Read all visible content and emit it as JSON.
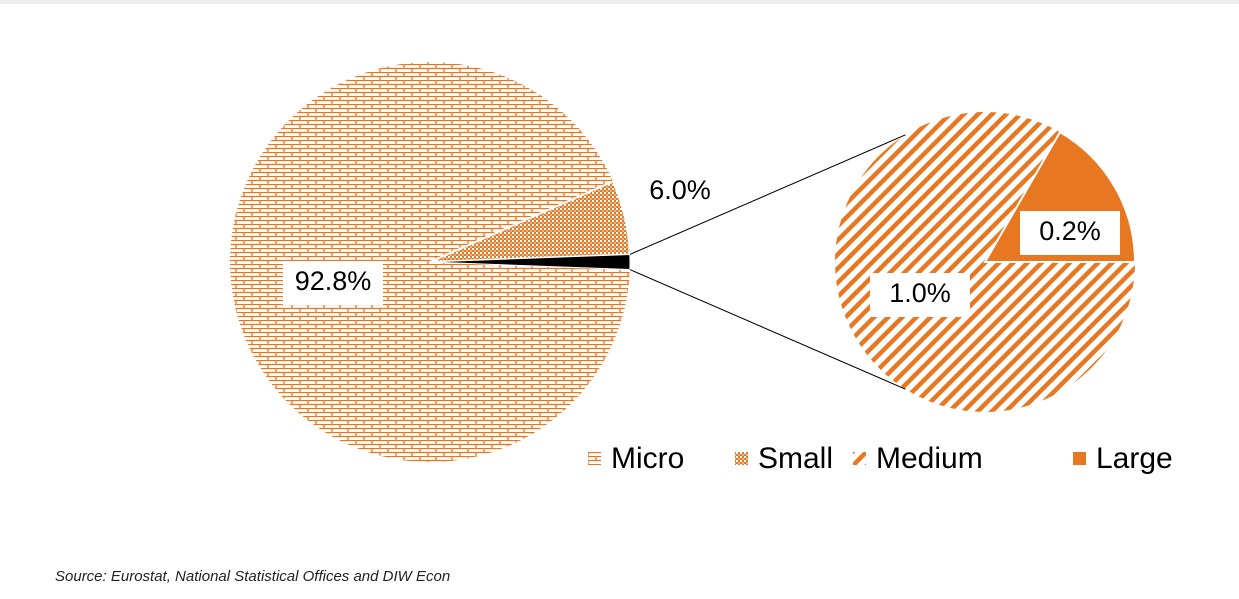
{
  "chart_data": {
    "type": "pie-of-pie",
    "categories": [
      "Micro",
      "Small",
      "Medium",
      "Large"
    ],
    "values": [
      92.8,
      6.0,
      1.0,
      0.2
    ],
    "value_labels": [
      "92.8%",
      "6.0%",
      "1.0%",
      "0.2%"
    ],
    "color": "#e87722",
    "other_color": "#000000",
    "legend": "bottom-right",
    "source": "Source: Eurostat, National Statistical Offices and DIW Econ"
  }
}
